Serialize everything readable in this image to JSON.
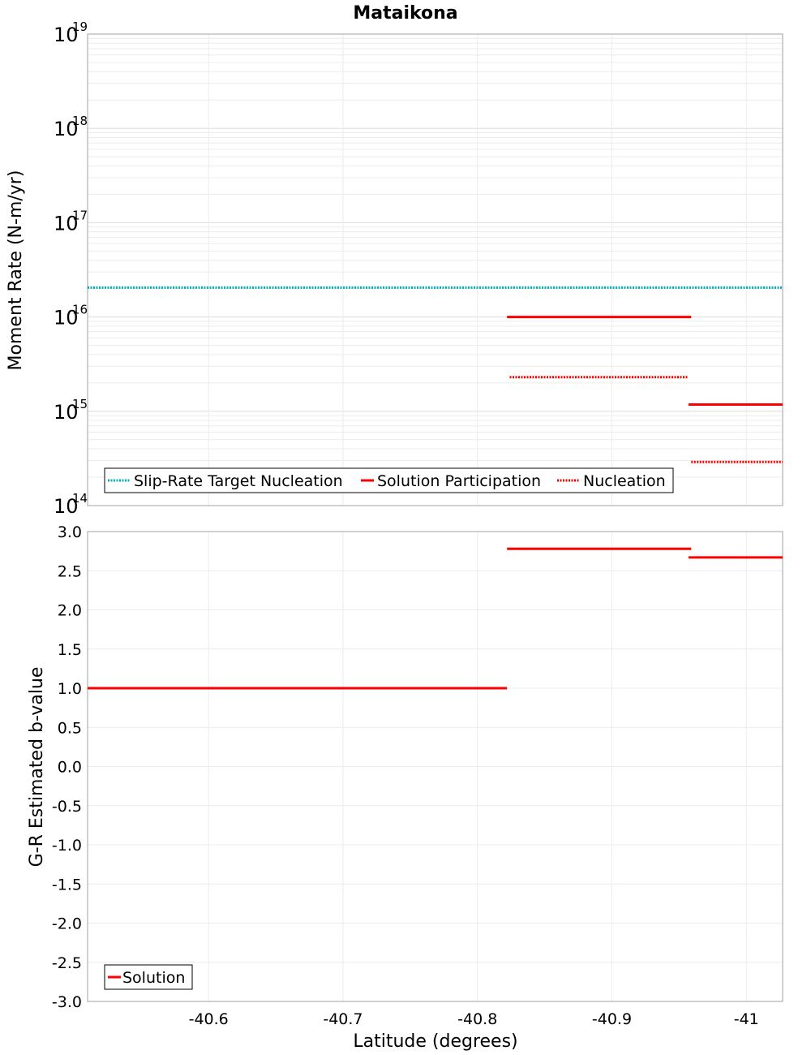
{
  "title": "Mataikona",
  "xlabel": "Latitude (degrees)",
  "chart_data": [
    {
      "type": "line",
      "panel": "moment-rate",
      "ylabel": "Moment Rate (N-m/yr)",
      "yscale": "log",
      "ylim": [
        100000000000000.0,
        1e+19
      ],
      "xlim": [
        -40.51,
        -41.027
      ],
      "xticks": [
        -40.6,
        -40.7,
        -40.8,
        -40.9,
        -41.0
      ],
      "xtick_labels": [
        "-40.6",
        "-40.7",
        "-40.8",
        "-40.9",
        "-41"
      ],
      "yticks": [
        {
          "base": "10",
          "exp": "14",
          "value": 100000000000000.0
        },
        {
          "base": "10",
          "exp": "15",
          "value": 1000000000000000.0
        },
        {
          "base": "10",
          "exp": "16",
          "value": 1e+16
        },
        {
          "base": "10",
          "exp": "17",
          "value": 1e+17
        },
        {
          "base": "10",
          "exp": "18",
          "value": 1e+18
        },
        {
          "base": "10",
          "exp": "19",
          "value": 1e+19
        }
      ],
      "grid": true,
      "legend_position": "bottom-left",
      "series": [
        {
          "name": "Slip-Rate Target Nucleation",
          "color": "#00b0b8",
          "style": "dotted",
          "segments": [
            [
              -40.51,
              -41.027,
              2.05e+16
            ]
          ]
        },
        {
          "name": "Solution Participation",
          "color": "#ff0000",
          "style": "solid",
          "segments": [
            [
              -40.822,
              -40.959,
              1e+16
            ],
            [
              -40.957,
              -41.027,
              1180000000000000.0
            ]
          ]
        },
        {
          "name": "Nucleation",
          "color": "#ff0000",
          "style": "dotted",
          "segments": [
            [
              -40.824,
              -40.957,
              2300000000000000.0
            ],
            [
              -40.959,
              -41.027,
              290000000000000.0
            ]
          ]
        }
      ]
    },
    {
      "type": "line",
      "panel": "b-value",
      "ylabel": "G-R Estimated b-value",
      "yscale": "linear",
      "ylim": [
        -3.0,
        3.0
      ],
      "xlim": [
        -40.51,
        -41.027
      ],
      "yticks": [
        3.0,
        2.5,
        2.0,
        1.5,
        1.0,
        0.5,
        0.0,
        -0.5,
        -1.0,
        -1.5,
        -2.0,
        -2.5,
        -3.0
      ],
      "ytick_labels": [
        "3.0",
        "2.5",
        "2.0",
        "1.5",
        "1.0",
        "0.5",
        "0.0",
        "-0.5",
        "-1.0",
        "-1.5",
        "-2.0",
        "-2.5",
        "-3.0"
      ],
      "grid": true,
      "legend_position": "bottom-left",
      "series": [
        {
          "name": "Solution",
          "color": "#ff0000",
          "style": "solid",
          "segments": [
            [
              -40.51,
              -40.822,
              1.0
            ],
            [
              -40.822,
              -40.959,
              2.78
            ],
            [
              -40.957,
              -41.027,
              2.67
            ]
          ]
        }
      ]
    }
  ]
}
